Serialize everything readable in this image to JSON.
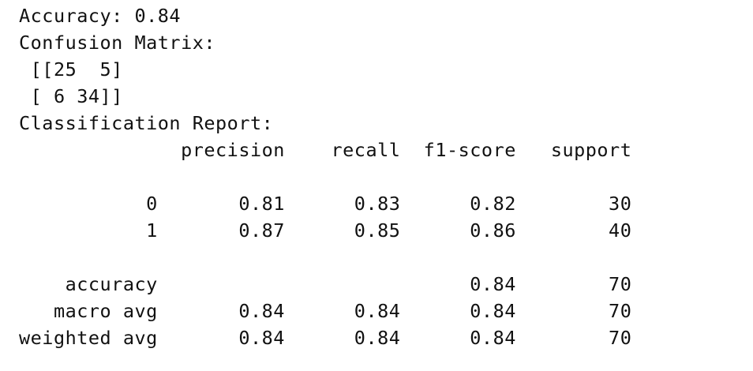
{
  "output_lines": [
    "Accuracy: 0.84",
    "Confusion Matrix:",
    " [[25  5]",
    " [ 6 34]]",
    "Classification Report:",
    "              precision    recall  f1-score   support",
    "",
    "           0       0.81      0.83      0.82        30",
    "           1       0.87      0.85      0.86        40",
    "",
    "    accuracy                           0.84        70",
    "   macro avg       0.84      0.84      0.84        70",
    "weighted avg       0.84      0.84      0.84        70"
  ]
}
